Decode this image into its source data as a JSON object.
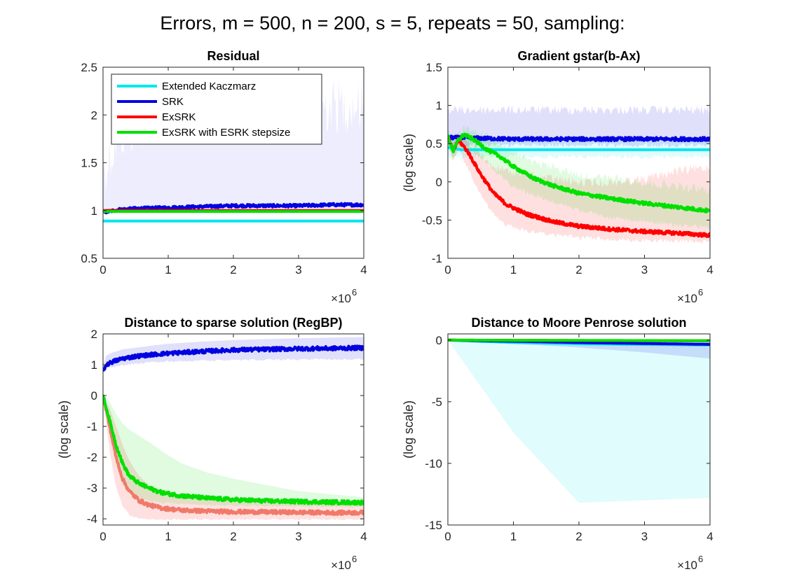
{
  "figure": {
    "title": "Errors, m = 500, n = 200, s = 5, repeats = 50, sampling:"
  },
  "colors": {
    "Extended Kaczmarz": "#00e5ee",
    "SRK": "#0000e0",
    "ExSRK": "#ff0000",
    "ExSRK with ESRK stepsize": "#00e000"
  },
  "chart_data": [
    {
      "type": "line",
      "title": "Residual",
      "xlabel": "",
      "ylabel": "",
      "x_exponent_label": "×10",
      "x_exponent": "6",
      "xlim": [
        0,
        4
      ],
      "ylim": [
        0.5,
        2.5
      ],
      "xticks": [
        0,
        1,
        2,
        3,
        4
      ],
      "yticks": [
        0.5,
        1,
        1.5,
        2,
        2.5
      ],
      "xtick_labels": [
        "0",
        "1",
        "2",
        "3",
        "4"
      ],
      "ytick_labels": [
        "0.5",
        "1",
        "1.5",
        "2",
        "2.5"
      ],
      "legend_position": "top-left",
      "series": [
        {
          "name": "Extended Kaczmarz",
          "x": [
            0,
            1,
            2,
            3,
            4
          ],
          "values": [
            0.89,
            0.89,
            0.89,
            0.89,
            0.89
          ],
          "band_low": [
            0.88,
            0.88,
            0.88,
            0.88,
            0.88
          ],
          "band_high": [
            0.9,
            0.9,
            0.9,
            0.9,
            0.9
          ]
        },
        {
          "name": "SRK",
          "x": [
            0,
            0.25,
            0.5,
            1,
            1.5,
            2,
            2.5,
            3,
            3.5,
            4
          ],
          "values": [
            0.98,
            1.01,
            1.02,
            1.03,
            1.04,
            1.05,
            1.05,
            1.05,
            1.06,
            1.06
          ],
          "band_low": [
            0.97,
            0.99,
            1.0,
            1.0,
            1.01,
            1.01,
            1.01,
            1.01,
            1.01,
            1.02
          ],
          "band_high": [
            1.7,
            2.1,
            2.2,
            2.3,
            2.3,
            2.4,
            2.4,
            2.4,
            2.4,
            2.4
          ]
        },
        {
          "name": "ExSRK",
          "x": [
            0,
            1,
            2,
            3,
            4
          ],
          "values": [
            1.0,
            1.0,
            1.0,
            1.0,
            1.0
          ],
          "band_low": [
            0.99,
            0.99,
            0.99,
            0.99,
            0.99
          ],
          "band_high": [
            1.01,
            1.01,
            1.01,
            1.01,
            1.01
          ]
        },
        {
          "name": "ExSRK with ESRK stepsize",
          "x": [
            0,
            1,
            2,
            3,
            4
          ],
          "values": [
            0.99,
            0.99,
            0.99,
            0.99,
            0.99
          ],
          "band_low": [
            0.98,
            0.98,
            0.98,
            0.98,
            0.98
          ],
          "band_high": [
            1.0,
            1.0,
            1.0,
            1.0,
            1.0
          ]
        }
      ]
    },
    {
      "type": "line",
      "title": "Gradient gstar(b-Ax)",
      "xlabel": "",
      "ylabel": "(log scale)",
      "x_exponent_label": "×10",
      "x_exponent": "6",
      "xlim": [
        0,
        4
      ],
      "ylim": [
        -1,
        1.5
      ],
      "xticks": [
        0,
        1,
        2,
        3,
        4
      ],
      "yticks": [
        -1,
        -0.5,
        0,
        0.5,
        1,
        1.5
      ],
      "xtick_labels": [
        "0",
        "1",
        "2",
        "3",
        "4"
      ],
      "ytick_labels": [
        "-1",
        "-0.5",
        "0",
        "0.5",
        "1",
        "1.5"
      ],
      "series": [
        {
          "name": "Extended Kaczmarz",
          "x": [
            0,
            0.2,
            1,
            2,
            3,
            4
          ],
          "values": [
            0.45,
            0.42,
            0.42,
            0.42,
            0.42,
            0.42
          ],
          "band_low": [
            0.3,
            0.3,
            0.3,
            0.3,
            0.3,
            0.3
          ],
          "band_high": [
            0.6,
            0.55,
            0.55,
            0.55,
            0.55,
            0.55
          ]
        },
        {
          "name": "SRK",
          "x": [
            0,
            0.5,
            1,
            2,
            3,
            4
          ],
          "values": [
            0.58,
            0.57,
            0.56,
            0.56,
            0.56,
            0.56
          ],
          "band_low": [
            0.45,
            0.45,
            0.45,
            0.45,
            0.45,
            0.45
          ],
          "band_high": [
            1.0,
            1.0,
            1.0,
            1.0,
            1.0,
            1.0
          ]
        },
        {
          "name": "ExSRK",
          "x": [
            0,
            0.08,
            0.16,
            0.3,
            0.5,
            0.7,
            0.9,
            1.2,
            1.6,
            2.0,
            2.5,
            3.0,
            3.5,
            4.0
          ],
          "values": [
            0.6,
            0.4,
            0.55,
            0.4,
            0.1,
            -0.15,
            -0.3,
            -0.42,
            -0.52,
            -0.58,
            -0.62,
            -0.65,
            -0.67,
            -0.7
          ],
          "band_low": [
            0.45,
            0.25,
            0.4,
            0.15,
            -0.2,
            -0.45,
            -0.6,
            -0.68,
            -0.72,
            -0.76,
            -0.78,
            -0.8,
            -0.8,
            -0.82
          ],
          "band_high": [
            0.7,
            0.6,
            0.7,
            0.6,
            0.4,
            0.25,
            0.2,
            0.15,
            0.1,
            0.05,
            0.05,
            0.1,
            0.2,
            0.25
          ]
        },
        {
          "name": "ExSRK with ESRK stepsize",
          "x": [
            0,
            0.08,
            0.16,
            0.25,
            0.4,
            0.6,
            0.8,
            1.0,
            1.3,
            1.6,
            2.0,
            2.5,
            3.0,
            3.5,
            4.0
          ],
          "values": [
            0.6,
            0.4,
            0.55,
            0.62,
            0.55,
            0.42,
            0.33,
            0.2,
            0.05,
            -0.05,
            -0.15,
            -0.22,
            -0.28,
            -0.33,
            -0.38
          ],
          "band_low": [
            0.45,
            0.25,
            0.4,
            0.45,
            0.35,
            0.2,
            0.05,
            -0.1,
            -0.2,
            -0.3,
            -0.4,
            -0.5,
            -0.55,
            -0.6,
            -0.63
          ],
          "band_high": [
            0.7,
            0.6,
            0.7,
            0.75,
            0.72,
            0.65,
            0.55,
            0.45,
            0.3,
            0.25,
            0.15,
            0.1,
            0.05,
            0.0,
            -0.05
          ]
        }
      ]
    },
    {
      "type": "line",
      "title": "Distance to sparse solution (RegBP)",
      "xlabel": "",
      "ylabel": "(log scale)",
      "x_exponent_label": "×10",
      "x_exponent": "6",
      "xlim": [
        0,
        4
      ],
      "ylim": [
        -4.2,
        2
      ],
      "xticks": [
        0,
        1,
        2,
        3,
        4
      ],
      "yticks": [
        -4,
        -3,
        -2,
        -1,
        0,
        1,
        2
      ],
      "xtick_labels": [
        "0",
        "1",
        "2",
        "3",
        "4"
      ],
      "ytick_labels": [
        "-4",
        "-3",
        "-2",
        "-1",
        "0",
        "1",
        "2"
      ],
      "series": [
        {
          "name": "SRK",
          "x": [
            0,
            0.05,
            0.15,
            0.3,
            0.5,
            0.75,
            1.0,
            1.5,
            2.0,
            2.5,
            3.0,
            3.5,
            4.0
          ],
          "values": [
            0.8,
            1.0,
            1.1,
            1.2,
            1.27,
            1.33,
            1.37,
            1.43,
            1.48,
            1.5,
            1.52,
            1.53,
            1.55
          ],
          "band_low": [
            0.7,
            0.85,
            0.9,
            0.95,
            1.0,
            1.05,
            1.08,
            1.1,
            1.12,
            1.13,
            1.14,
            1.15,
            1.15
          ],
          "band_high": [
            1.0,
            1.3,
            1.4,
            1.5,
            1.55,
            1.62,
            1.68,
            1.75,
            1.8,
            1.83,
            1.86,
            1.88,
            1.9
          ]
        },
        {
          "name": "ExSRK",
          "x": [
            0,
            0.1,
            0.2,
            0.3,
            0.4,
            0.55,
            0.7,
            0.9,
            1.2,
            1.6,
            2.0,
            2.5,
            3.0,
            3.5,
            4.0
          ],
          "values": [
            0,
            -1.0,
            -2.0,
            -2.7,
            -3.1,
            -3.4,
            -3.55,
            -3.65,
            -3.72,
            -3.75,
            -3.77,
            -3.78,
            -3.79,
            -3.8,
            -3.8
          ],
          "band_low": [
            0,
            -1.8,
            -3.0,
            -3.6,
            -3.9,
            -4.0,
            -4.05,
            -4.05,
            -4.05,
            -4.05,
            -4.05,
            -4.05,
            -4.05,
            -4.05,
            -4.05
          ],
          "band_high": [
            0,
            -0.4,
            -1.0,
            -1.6,
            -2.1,
            -2.6,
            -2.9,
            -3.1,
            -3.25,
            -3.35,
            -3.4,
            -3.4,
            -3.4,
            -3.4,
            -3.4
          ]
        },
        {
          "name": "ExSRK with ESRK stepsize",
          "x": [
            0,
            0.1,
            0.2,
            0.3,
            0.4,
            0.55,
            0.7,
            0.9,
            1.2,
            1.6,
            2.0,
            2.5,
            3.0,
            3.5,
            4.0
          ],
          "values": [
            0,
            -0.8,
            -1.6,
            -2.2,
            -2.6,
            -2.85,
            -3.0,
            -3.15,
            -3.25,
            -3.33,
            -3.38,
            -3.42,
            -3.44,
            -3.46,
            -3.47
          ],
          "band_low": [
            0,
            -1.3,
            -2.3,
            -2.9,
            -3.2,
            -3.35,
            -3.45,
            -3.5,
            -3.55,
            -3.58,
            -3.6,
            -3.62,
            -3.63,
            -3.64,
            -3.65
          ],
          "band_high": [
            0,
            -0.2,
            -0.6,
            -0.9,
            -1.1,
            -1.3,
            -1.5,
            -1.8,
            -2.2,
            -2.5,
            -2.7,
            -2.9,
            -3.1,
            -3.2,
            -3.3
          ]
        }
      ]
    },
    {
      "type": "line",
      "title": "Distance to Moore Penrose solution",
      "xlabel": "",
      "ylabel": "(log scale)",
      "x_exponent_label": "×10",
      "x_exponent": "6",
      "xlim": [
        0,
        4
      ],
      "ylim": [
        -15,
        0.5
      ],
      "xticks": [
        0,
        1,
        2,
        3,
        4
      ],
      "yticks": [
        -15,
        -10,
        -5,
        0
      ],
      "xtick_labels": [
        "0",
        "1",
        "2",
        "3",
        "4"
      ],
      "ytick_labels": [
        "-15",
        "-10",
        "-5",
        "0"
      ],
      "series": [
        {
          "name": "Extended Kaczmarz",
          "x": [
            0,
            1,
            2,
            3,
            4
          ],
          "values": [
            0,
            -0.2,
            -0.3,
            -0.35,
            -0.4
          ],
          "band_low": [
            0,
            -7.5,
            -13.2,
            -13.0,
            -12.8
          ],
          "band_high": [
            0,
            -0.05,
            -0.05,
            -0.05,
            -0.05
          ]
        },
        {
          "name": "SRK",
          "x": [
            0,
            1,
            2,
            3,
            4
          ],
          "values": [
            0,
            -0.1,
            -0.2,
            -0.28,
            -0.35
          ],
          "band_low": [
            0,
            -0.3,
            -0.6,
            -1.0,
            -1.5
          ],
          "band_high": [
            0,
            0,
            0,
            0,
            0
          ]
        },
        {
          "name": "ExSRK",
          "x": [
            0,
            1,
            2,
            3,
            4
          ],
          "values": [
            0,
            -0.02,
            -0.04,
            -0.05,
            -0.06
          ],
          "band_low": [
            0,
            -0.05,
            -0.07,
            -0.09,
            -0.1
          ],
          "band_high": [
            0,
            0,
            0,
            0,
            0
          ]
        },
        {
          "name": "ExSRK with ESRK stepsize",
          "x": [
            0,
            1,
            2,
            3,
            4
          ],
          "values": [
            0,
            -0.02,
            -0.03,
            -0.04,
            -0.05
          ],
          "band_low": [
            0,
            -0.04,
            -0.06,
            -0.07,
            -0.08
          ],
          "band_high": [
            0,
            0,
            0,
            0,
            0
          ]
        }
      ]
    }
  ]
}
